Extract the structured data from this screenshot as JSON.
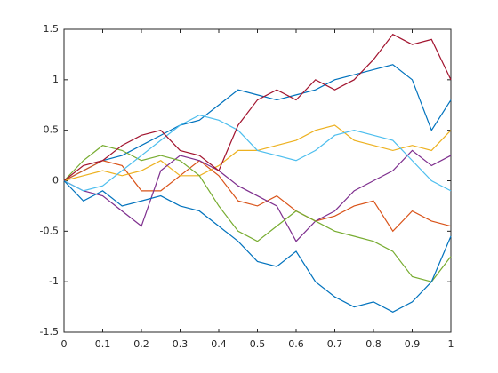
{
  "chart_data": {
    "type": "line",
    "x": [
      0,
      0.05,
      0.1,
      0.15,
      0.2,
      0.25,
      0.3,
      0.35,
      0.4,
      0.45,
      0.5,
      0.55,
      0.6,
      0.65,
      0.7,
      0.75,
      0.8,
      0.85,
      0.9,
      0.95,
      1
    ],
    "series": [
      {
        "color": "#0072BD",
        "values": [
          0,
          0.1,
          0.2,
          0.25,
          0.35,
          0.45,
          0.55,
          0.6,
          0.75,
          0.9,
          0.85,
          0.8,
          0.85,
          0.9,
          1.0,
          1.05,
          1.1,
          1.15,
          1.0,
          0.5,
          0.8
        ]
      },
      {
        "color": "#D95319",
        "values": [
          0,
          0.1,
          0.2,
          0.15,
          -0.1,
          -0.1,
          0.05,
          0.2,
          0.05,
          -0.2,
          -0.25,
          -0.15,
          -0.3,
          -0.4,
          -0.35,
          -0.25,
          -0.2,
          -0.5,
          -0.3,
          -0.4,
          -0.45
        ]
      },
      {
        "color": "#EDB120",
        "values": [
          0,
          0.05,
          0.1,
          0.05,
          0.1,
          0.2,
          0.05,
          0.05,
          0.15,
          0.3,
          0.3,
          0.35,
          0.4,
          0.5,
          0.55,
          0.4,
          0.35,
          0.3,
          0.35,
          0.3,
          0.5
        ]
      },
      {
        "color": "#7E2F8E",
        "values": [
          0,
          -0.1,
          -0.15,
          -0.3,
          -0.45,
          0.1,
          0.25,
          0.2,
          0.1,
          -0.05,
          -0.15,
          -0.25,
          -0.6,
          -0.4,
          -0.3,
          -0.1,
          0.0,
          0.1,
          0.3,
          0.15,
          0.25
        ]
      },
      {
        "color": "#77AC30",
        "values": [
          0,
          0.2,
          0.35,
          0.3,
          0.2,
          0.25,
          0.2,
          0.05,
          -0.25,
          -0.5,
          -0.6,
          -0.45,
          -0.3,
          -0.4,
          -0.5,
          -0.55,
          -0.6,
          -0.7,
          -0.95,
          -1.0,
          -0.75
        ]
      },
      {
        "color": "#4DBEEE",
        "values": [
          0,
          -0.1,
          -0.05,
          0.1,
          0.25,
          0.4,
          0.55,
          0.65,
          0.6,
          0.5,
          0.3,
          0.25,
          0.2,
          0.3,
          0.45,
          0.5,
          0.45,
          0.4,
          0.2,
          0.0,
          -0.1
        ]
      },
      {
        "color": "#A2142F",
        "values": [
          0,
          0.15,
          0.2,
          0.35,
          0.45,
          0.5,
          0.3,
          0.25,
          0.1,
          0.55,
          0.8,
          0.9,
          0.8,
          1.0,
          0.9,
          1.0,
          1.2,
          1.45,
          1.35,
          1.4,
          1.0
        ]
      },
      {
        "color": "#0072BD",
        "values": [
          0,
          -0.2,
          -0.1,
          -0.25,
          -0.2,
          -0.15,
          -0.25,
          -0.3,
          -0.45,
          -0.6,
          -0.8,
          -0.85,
          -0.7,
          -1.0,
          -1.15,
          -1.25,
          -1.2,
          -1.3,
          -1.2,
          -1.0,
          -0.55
        ]
      }
    ],
    "xlim": [
      0,
      1
    ],
    "xticks": [
      0,
      0.1,
      0.2,
      0.3,
      0.4,
      0.5,
      0.6,
      0.7,
      0.8,
      0.9,
      1
    ],
    "ylim": [
      -1.5,
      1.5
    ],
    "yticks": [
      -1.5,
      -1,
      -0.5,
      0,
      0.5,
      1,
      1.5
    ],
    "grid": false
  }
}
